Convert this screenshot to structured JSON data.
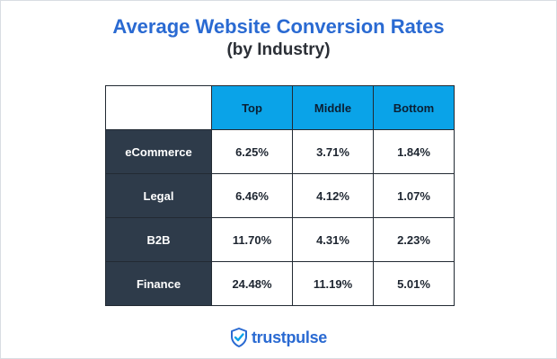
{
  "chart_data": {
    "type": "table",
    "title": "Average Website Conversion Rates",
    "subtitle": "(by Industry)",
    "columns": [
      "Top",
      "Middle",
      "Bottom"
    ],
    "rows": [
      {
        "label": "eCommerce",
        "values": [
          "6.25%",
          "3.71%",
          "1.84%"
        ]
      },
      {
        "label": "Legal",
        "values": [
          "6.46%",
          "4.12%",
          "1.07%"
        ]
      },
      {
        "label": "B2B",
        "values": [
          "11.70%",
          "4.31%",
          "2.23%"
        ]
      },
      {
        "label": "Finance",
        "values": [
          "24.48%",
          "11.19%",
          "5.01%"
        ]
      }
    ]
  },
  "brand": {
    "logo_text": "trustpulse",
    "logo_icon": "shield-check-icon"
  },
  "colors": {
    "title": "#2a6ad2",
    "header_bg": "#0aa3e8",
    "row_header_bg": "#2e3b4a",
    "border": "#222a33"
  }
}
